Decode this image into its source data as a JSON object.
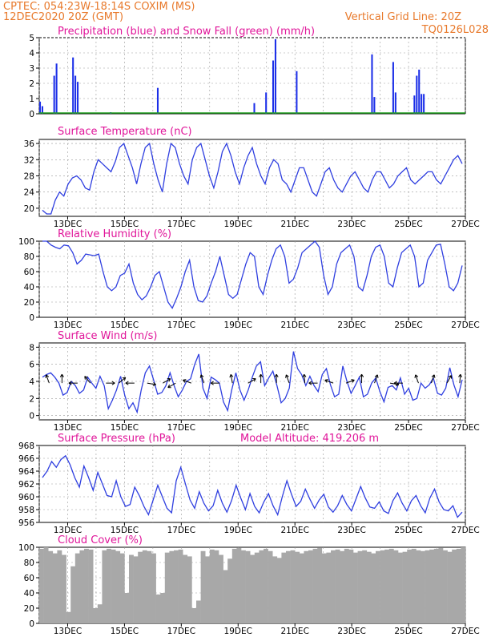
{
  "header": {
    "left_line1": "CPTEC:   054:23W-18:14S   COXIM (MS)",
    "left_line2": "12DEC2020 20Z (GMT)",
    "right_line1": "Vertical Grid Line: 20Z",
    "right_line2": "TQ0126L028"
  },
  "colors": {
    "header": "#e8792b",
    "titles": "#e0169a",
    "precip": "#1c2fe8",
    "snow": "#1ea01e",
    "line": "#2f3fe0",
    "wind_arrow": "#000000",
    "cloud": "#a8a8a8",
    "grid": "#9a9a9a"
  },
  "x_axis": {
    "start": "12DEC2020 20Z",
    "end": "27DEC2020 20Z",
    "tick_labels": [
      "13DEC",
      "15DEC",
      "17DEC",
      "19DEC",
      "21DEC",
      "23DEC",
      "25DEC",
      "27DEC"
    ],
    "grid": "vertical dashed line daily at 20Z"
  },
  "chart_data": [
    {
      "type": "bar",
      "title": "Precipitation (blue) and Snow Fall (green) (mm/h)",
      "ylim": [
        0,
        5
      ],
      "yticks": [
        "0",
        "1",
        "2",
        "3",
        "4",
        "5"
      ],
      "step_hours": 3,
      "series": [
        {
          "name": "Precipitation",
          "color": "#1c2fe8",
          "values": [
            0.8,
            0.5,
            0,
            0,
            0,
            0,
            2.5,
            3.3,
            0,
            0,
            0,
            0,
            0,
            0,
            3.7,
            2.5,
            2.1,
            0,
            0,
            0,
            0,
            0,
            0,
            0,
            0,
            0,
            0,
            0,
            0,
            0,
            0.1,
            0,
            0,
            0,
            0,
            0,
            0,
            0,
            0,
            0,
            0,
            0,
            0,
            0,
            0,
            0,
            0,
            0,
            0,
            0,
            1.7,
            0,
            0,
            0,
            0,
            0,
            0,
            0,
            0,
            0,
            0,
            0,
            0,
            0,
            0,
            0,
            0,
            0,
            0,
            0,
            0,
            0,
            0,
            0,
            0,
            0,
            0,
            0,
            0,
            0,
            0,
            0,
            0,
            0,
            0,
            0,
            0,
            0,
            0,
            0,
            0,
            0.7,
            0,
            0,
            0,
            0,
            1.4,
            0,
            0,
            3.5,
            4.9,
            0,
            0,
            0,
            0,
            0,
            0,
            0,
            0,
            2.8,
            0,
            0,
            0,
            0,
            0,
            0,
            0,
            0,
            0,
            0,
            0,
            0,
            0,
            0,
            0,
            0,
            0,
            0,
            0,
            0,
            0,
            0,
            0,
            0,
            0,
            0,
            0,
            0,
            0,
            0,
            0,
            3.9,
            1.1,
            0,
            0,
            0,
            0,
            0,
            0,
            0,
            3.4,
            1.4,
            0,
            0,
            0,
            0,
            0,
            0,
            0,
            1.2,
            2.5,
            2.9,
            1.3,
            1.3,
            0,
            0,
            0,
            0,
            0,
            0,
            0,
            0,
            0,
            0,
            0,
            0,
            0,
            0,
            0,
            0,
            0
          ]
        },
        {
          "name": "Snow Fall",
          "color": "#1ea01e",
          "values": "0 throughout (shown as baseline)"
        }
      ]
    },
    {
      "type": "line",
      "title": "Surface Temperature (nC)",
      "ylim": [
        18,
        37
      ],
      "yticks": [
        "20",
        "24",
        "28",
        "32",
        "36"
      ],
      "series": [
        {
          "name": "Surface Temperature",
          "values": [
            19.5,
            18.6,
            18.6,
            22,
            24,
            23,
            26,
            27.5,
            28,
            27,
            25,
            24.5,
            29,
            32,
            31,
            30,
            29,
            31.5,
            35,
            36,
            33,
            30,
            26,
            31,
            35,
            36,
            31,
            27,
            24,
            31,
            36,
            35,
            31,
            28,
            26,
            32,
            35,
            36,
            32,
            28,
            25,
            29,
            34,
            36,
            33,
            29,
            26,
            30,
            33,
            35,
            31,
            28,
            26,
            30,
            32,
            31,
            27,
            26,
            24,
            27,
            30,
            30,
            27,
            24,
            23,
            26,
            29,
            30,
            27,
            25,
            24,
            26,
            28,
            29,
            27,
            25,
            24,
            27,
            29,
            29,
            27,
            25,
            26,
            28,
            29,
            30,
            27,
            26,
            27,
            28,
            29,
            29,
            27,
            26,
            28,
            30,
            32,
            33,
            31
          ]
        }
      ]
    },
    {
      "type": "line",
      "title": "Relative Humidity (%)",
      "ylim": [
        0,
        100
      ],
      "yticks": [
        "0",
        "20",
        "40",
        "60",
        "80",
        "100"
      ],
      "series": [
        {
          "name": "Relative Humidity",
          "values": [
            100,
            100,
            95,
            92,
            90,
            95,
            94,
            85,
            70,
            75,
            83,
            82,
            81,
            83,
            60,
            40,
            35,
            40,
            55,
            58,
            70,
            45,
            30,
            23,
            28,
            40,
            55,
            60,
            40,
            20,
            12,
            25,
            40,
            60,
            75,
            40,
            22,
            20,
            28,
            45,
            60,
            80,
            55,
            30,
            25,
            30,
            50,
            70,
            85,
            80,
            40,
            30,
            55,
            75,
            90,
            95,
            80,
            45,
            50,
            65,
            85,
            90,
            95,
            100,
            92,
            55,
            30,
            40,
            70,
            85,
            90,
            95,
            80,
            40,
            35,
            55,
            80,
            92,
            95,
            80,
            45,
            40,
            65,
            85,
            90,
            95,
            80,
            40,
            45,
            75,
            85,
            95,
            96,
            70,
            40,
            35,
            45,
            68
          ]
        }
      ]
    },
    {
      "type": "line",
      "title": "Surface Wind (m/s)",
      "ylim": [
        -0.5,
        8.5
      ],
      "yticks": [
        "0",
        "2",
        "4",
        "6",
        "8"
      ],
      "series": [
        {
          "name": "Surface Wind",
          "values": [
            4.5,
            4.8,
            5.0,
            4.5,
            3.8,
            2.4,
            2.7,
            4.0,
            3.5,
            2.6,
            3.0,
            4.5,
            3.8,
            3.2,
            4.6,
            3.5,
            0.8,
            1.8,
            3.0,
            4.6,
            2.4,
            0.8,
            1.5,
            0.4,
            3.0,
            5.0,
            5.8,
            4.2,
            2.5,
            2.7,
            3.5,
            5.0,
            3.5,
            2.2,
            3.0,
            4.0,
            4.3,
            6.0,
            7.2,
            3.2,
            2.0,
            4.5,
            4.2,
            3.8,
            1.6,
            0.6,
            3.0,
            5.0,
            3.0,
            1.8,
            3.0,
            4.5,
            5.8,
            6.3,
            3.5,
            4.4,
            5.2,
            3.5,
            1.5,
            2.0,
            3.2,
            7.5,
            5.5,
            4.8,
            3.5,
            4.6,
            3.5,
            2.8,
            4.8,
            5.5,
            3.6,
            2.2,
            2.5,
            5.8,
            4.0,
            2.6,
            3.5,
            4.5,
            2.2,
            2.5,
            3.8,
            4.4,
            2.8,
            1.6,
            3.3,
            3.5,
            3.0,
            4.4,
            2.5,
            3.2,
            1.8,
            2.0,
            3.8,
            3.2,
            3.6,
            4.4,
            2.6,
            2.4,
            3.2,
            5.6,
            3.6,
            2.2,
            4.2
          ]
        }
      ],
      "wind_arrows": "black direction arrows at 20Z daily"
    },
    {
      "type": "line",
      "title": "Surface Pressure (hPa)",
      "annotation": "Model Altitude: 419.206 m",
      "ylim": [
        956,
        968
      ],
      "yticks": [
        "956",
        "958",
        "960",
        "962",
        "964",
        "966",
        "968"
      ],
      "series": [
        {
          "name": "Surface Pressure",
          "values": [
            963,
            964,
            965.5,
            964.6,
            965.8,
            966.4,
            965,
            963,
            961.5,
            964.8,
            963,
            961,
            963.8,
            962,
            960.2,
            960,
            962.5,
            960,
            958.5,
            958.8,
            961.5,
            960.2,
            958.5,
            957.2,
            959.5,
            961.8,
            960,
            958.2,
            957.5,
            962.5,
            964.6,
            962,
            959.5,
            958.2,
            960.8,
            959,
            957.8,
            958.6,
            961,
            959,
            957.6,
            959.4,
            961.8,
            959.8,
            958,
            960.5,
            958.5,
            957.5,
            959.2,
            960.5,
            958.6,
            957.2,
            960,
            962.5,
            960.4,
            958.5,
            959.3,
            961.2,
            959.6,
            958.2,
            959.5,
            960.4,
            958.4,
            957.6,
            958.6,
            960.2,
            958.8,
            957.8,
            959.7,
            961.6,
            959.8,
            958.4,
            958.2,
            959.2,
            957.8,
            957.4,
            959.4,
            960.6,
            959,
            957.8,
            959.4,
            960.2,
            958.6,
            957.5,
            959.8,
            961.2,
            959.2,
            958,
            957.8,
            958.6,
            956.8,
            957.6
          ]
        }
      ]
    },
    {
      "type": "bar",
      "title": "Cloud Cover (%)",
      "ylim": [
        0,
        100
      ],
      "yticks": [
        "0",
        "20",
        "40",
        "60",
        "80",
        "100"
      ],
      "series": [
        {
          "name": "Cloud Cover",
          "values": [
            98,
            100,
            95,
            92,
            96,
            90,
            15,
            75,
            92,
            96,
            98,
            97,
            20,
            25,
            96,
            98,
            97,
            95,
            92,
            40,
            90,
            88,
            94,
            96,
            95,
            92,
            38,
            40,
            93,
            95,
            96,
            97,
            90,
            88,
            20,
            30,
            95,
            88,
            97,
            96,
            90,
            70,
            85,
            98,
            99,
            96,
            95,
            90,
            93,
            96,
            98,
            95,
            88,
            86,
            93,
            95,
            96,
            94,
            92,
            95,
            96,
            98,
            99,
            92,
            93,
            96,
            97,
            95,
            98,
            97,
            93,
            95,
            96,
            94,
            92,
            95,
            96,
            97,
            98,
            96,
            93,
            94,
            97,
            98,
            96,
            95,
            96,
            97,
            98,
            99,
            96,
            94,
            97,
            98,
            100
          ]
        }
      ]
    }
  ]
}
